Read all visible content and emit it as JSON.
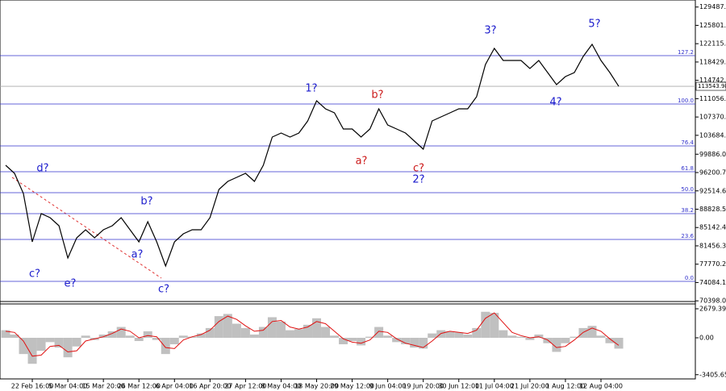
{
  "chart_data": [
    {
      "type": "line",
      "ylim": [
        70100,
        130900
      ],
      "yticks": [
        129487.43,
        125801.27,
        122115.11,
        118429.97,
        114742.97,
        111056.87,
        {
          "value": 107370.7,
          "label": "107370.70"
        },
        103684.61,
        99886.07,
        96200.77,
        92514.64,
        88828.57,
        85142.47,
        81456.37,
        77770.27,
        74084.17,
        70398.07
      ],
      "categories": [
        null,
        null,
        null,
        "22 Feb 16:00",
        null,
        null,
        null,
        "5 Mar 04:00",
        null,
        null,
        null,
        "15 Mar 20:00",
        null,
        null,
        null,
        "26 Mar 12:00",
        null,
        null,
        null,
        "6 Apr 04:00",
        null,
        null,
        null,
        "16 Apr 20:00",
        null,
        null,
        null,
        "27 Apr 12:00",
        null,
        null,
        null,
        "8 May 04:00",
        null,
        null,
        null,
        "18 May 20:00",
        null,
        null,
        null,
        "29 May 12:00",
        null,
        null,
        null,
        "9 Jun 04:00",
        null,
        null,
        null,
        "19 Jun 20:00",
        null,
        null,
        null,
        "30 Jun 12:00",
        null,
        null,
        null,
        "11 Jul 04:00",
        null,
        null,
        null,
        "21 Jul 20:00",
        null,
        null,
        null,
        "1 Aug 12:00",
        null,
        null,
        null,
        "12 Aug 04:00",
        null,
        null
      ],
      "series": [
        {
          "color": "#000000",
          "values": [
            97660,
            96040,
            91990,
            82260,
            87940,
            87130,
            85500,
            79020,
            83070,
            84690,
            83070,
            84690,
            85500,
            87130,
            84690,
            82260,
            86310,
            82260,
            77400,
            82260,
            83880,
            84690,
            84690,
            87130,
            92800,
            94420,
            95230,
            96040,
            94420,
            97660,
            103340,
            104150,
            103340,
            104150,
            106580,
            110630,
            109010,
            108200,
            104960,
            104960,
            103340,
            104960,
            109010,
            105770,
            104960,
            104150,
            102530,
            100910,
            106580,
            107390,
            108200,
            109010,
            109010,
            111440,
            117930,
            121170,
            118740,
            118740,
            118740,
            117120,
            118740,
            116310,
            113880,
            115500,
            116310,
            119550,
            121980,
            118740,
            116310,
            113540
          ]
        }
      ],
      "levels": [
        {
          "value": 119713,
          "label": "127.2"
        },
        {
          "value": 109985,
          "label": "100.0"
        },
        {
          "value": 101554,
          "label": "76.4"
        },
        {
          "value": 96366,
          "label": "61.8"
        },
        {
          "value": 92150,
          "label": "50.0"
        },
        {
          "value": 87935,
          "label": "38.2"
        },
        {
          "value": 82747,
          "label": "23.6"
        },
        {
          "value": 74316,
          "label": "0.0"
        }
      ],
      "level_color": "#3333cc",
      "current_price": 113543.98,
      "annotations": [
        {
          "text": "c?",
          "color": "#1a1acc"
        },
        {
          "text": "d?",
          "color": "#1a1acc"
        },
        {
          "text": "e?",
          "color": "#1a1acc"
        },
        {
          "text": "a?",
          "color": "#1a1acc"
        },
        {
          "text": "b?",
          "color": "#1a1acc"
        },
        {
          "text": "c?",
          "color": "#1a1acc"
        },
        {
          "text": "1?",
          "color": "#1a1acc"
        },
        {
          "text": "a?",
          "color": "#cc1a1a"
        },
        {
          "text": "b?",
          "color": "#cc1a1a"
        },
        {
          "text": "c?",
          "color": "#cc1a1a"
        },
        {
          "text": "2?",
          "color": "#1a1acc"
        },
        {
          "text": "3?",
          "color": "#1a1acc"
        },
        {
          "text": "4?",
          "color": "#1a1acc"
        },
        {
          "text": "5?",
          "color": "#1a1acc"
        }
      ]
    },
    {
      "type": "bar",
      "ylim": [
        -3795,
        3125
      ],
      "yticks": [
        2679.392,
        {
          "value": 0,
          "label": "0.00"
        },
        -3405.653
      ],
      "series": [
        {
          "type": "bar",
          "color": "#c0c0c0",
          "values": [
            700,
            300,
            -1500,
            -2400,
            -1200,
            -400,
            -900,
            -1800,
            -800,
            200,
            -200,
            300,
            600,
            1000,
            200,
            -300,
            600,
            -200,
            -1500,
            -600,
            200,
            100,
            400,
            900,
            2000,
            2200,
            1300,
            900,
            300,
            1000,
            1900,
            1500,
            700,
            800,
            1200,
            1800,
            1000,
            200,
            -600,
            -300,
            -700,
            100,
            1000,
            200,
            -400,
            -600,
            -900,
            -1000,
            400,
            700,
            600,
            500,
            300,
            900,
            2400,
            2300,
            700,
            200,
            100,
            -200,
            300,
            -500,
            -1300,
            -500,
            100,
            900,
            1100,
            200,
            -500,
            -1000
          ]
        },
        {
          "type": "line",
          "color": "#e01010",
          "values": [
            600,
            500,
            -300,
            -1700,
            -1600,
            -800,
            -700,
            -1300,
            -1200,
            -300,
            -100,
            100,
            400,
            800,
            600,
            0,
            200,
            100,
            -900,
            -1000,
            -200,
            100,
            300,
            700,
            1500,
            2000,
            1700,
            1100,
            600,
            700,
            1500,
            1600,
            1000,
            800,
            1000,
            1500,
            1300,
            600,
            -100,
            -400,
            -500,
            -200,
            600,
            500,
            -100,
            -500,
            -700,
            -900,
            -300,
            400,
            600,
            500,
            400,
            700,
            1800,
            2300,
            1400,
            500,
            200,
            0,
            100,
            -200,
            -900,
            -800,
            -200,
            500,
            900,
            600,
            -100,
            -700
          ]
        }
      ]
    }
  ]
}
